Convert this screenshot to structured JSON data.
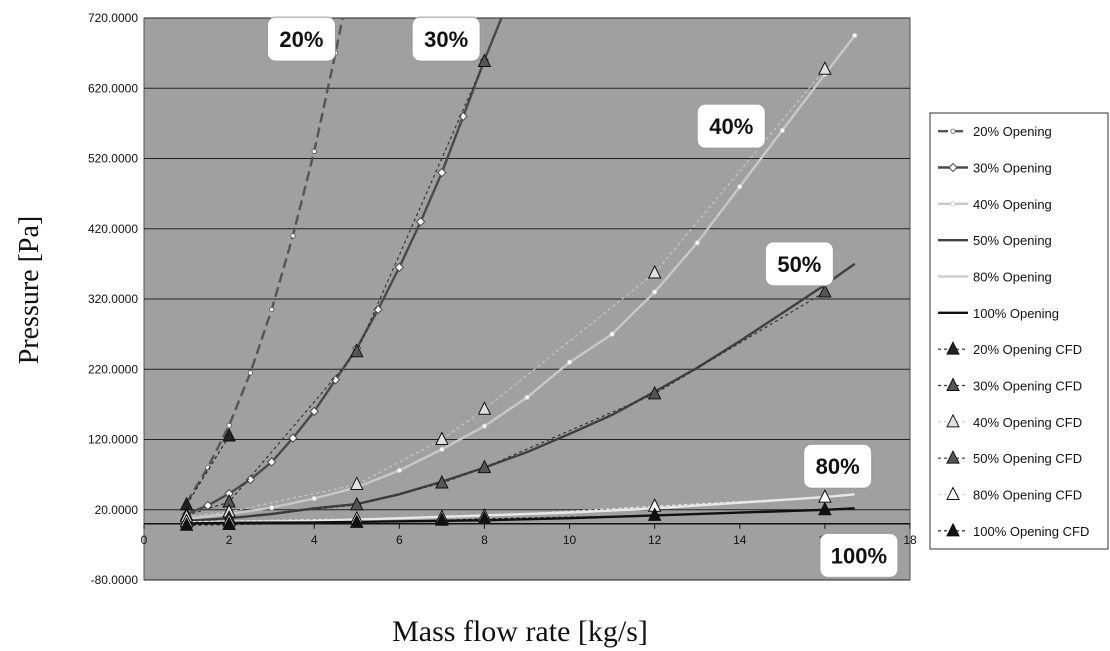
{
  "chart_data": {
    "type": "line",
    "xlabel": "Mass  flow rate [kg/s]",
    "ylabel": "Pressure  [Pa]",
    "xlim": [
      0,
      18
    ],
    "ylim": [
      -80,
      720
    ],
    "x_ticks": [
      0,
      2,
      4,
      6,
      8,
      10,
      12,
      14,
      16,
      18
    ],
    "y_ticks": [
      -80,
      20,
      120,
      220,
      320,
      420,
      520,
      620,
      720
    ],
    "y_tick_labels": [
      "-80.0000",
      "20.0000",
      "120.0000",
      "220.0000",
      "320.0000",
      "420.0000",
      "520.0000",
      "620.0000",
      "720.0000"
    ],
    "grid": "horizontal",
    "background": "#a0a0a0",
    "legend_position": "right",
    "series": [
      {
        "name": "20% Opening",
        "style": "dash",
        "color": "#555555",
        "marker": "dot",
        "x": [
          1,
          1.5,
          2,
          2.5,
          3,
          3.5,
          4,
          4.5,
          4.7
        ],
        "y": [
          30,
          80,
          140,
          215,
          305,
          410,
          530,
          670,
          730
        ]
      },
      {
        "name": "30% Opening",
        "style": "solid",
        "color": "#4a4a4a",
        "marker": "diamond",
        "x": [
          1,
          1.5,
          2,
          2.5,
          3,
          3.5,
          4,
          4.5,
          5,
          5.5,
          6,
          6.5,
          7,
          7.5,
          8,
          8.5
        ],
        "y": [
          14,
          26,
          43,
          63,
          88,
          122,
          160,
          205,
          250,
          305,
          365,
          430,
          500,
          580,
          660,
          735
        ]
      },
      {
        "name": "40% Opening",
        "style": "solid",
        "color": "#c8c8c8",
        "marker": "dot",
        "x": [
          1,
          2,
          3,
          4,
          5,
          6,
          7,
          8,
          9,
          10,
          11,
          12,
          13,
          14,
          15,
          16,
          16.7
        ],
        "y": [
          7,
          14,
          23,
          36,
          52,
          76,
          106,
          139,
          180,
          230,
          270,
          330,
          400,
          480,
          560,
          640,
          695
        ]
      },
      {
        "name": "50% Opening",
        "style": "solid",
        "color": "#404040",
        "marker": "none",
        "x": [
          1,
          2,
          3,
          4,
          5,
          6,
          7,
          8,
          9,
          10,
          11,
          12,
          13,
          14,
          15,
          16,
          16.7
        ],
        "y": [
          4,
          8,
          14,
          22,
          28,
          42,
          60,
          80,
          102,
          128,
          155,
          188,
          222,
          260,
          300,
          340,
          370
        ]
      },
      {
        "name": "80% Opening",
        "style": "solid",
        "color": "#e8e8e8",
        "marker": "none",
        "x": [
          1,
          4,
          8,
          10,
          12,
          14,
          16,
          16.7
        ],
        "y": [
          2,
          4,
          12,
          16,
          22,
          30,
          38,
          42
        ]
      },
      {
        "name": "100% Opening",
        "style": "solid",
        "color": "#111111",
        "marker": "none",
        "x": [
          1,
          4,
          8,
          10,
          12,
          14,
          16,
          16.7
        ],
        "y": [
          1,
          2,
          5,
          8,
          12,
          16,
          20,
          22
        ]
      },
      {
        "name": "20% Opening CFD",
        "style": "dot",
        "color": "#222222",
        "marker": "triangle",
        "marker_fill": "#222222",
        "x": [
          1,
          2
        ],
        "y": [
          27,
          125
        ]
      },
      {
        "name": "30% Opening CFD",
        "style": "dot",
        "color": "#333333",
        "marker": "triangle",
        "marker_fill": "#555555",
        "x": [
          1,
          2,
          5,
          8
        ],
        "y": [
          12,
          31,
          245,
          658
        ]
      },
      {
        "name": "40% Opening CFD",
        "style": "dot",
        "color": "#c8c8c8",
        "marker": "triangle",
        "marker_fill": "#e0e0e0",
        "x": [
          1,
          2,
          5,
          7,
          8,
          12,
          16
        ],
        "y": [
          10,
          17,
          56,
          120,
          163,
          357,
          647
        ]
      },
      {
        "name": "50% Opening CFD",
        "style": "dot",
        "color": "#333333",
        "marker": "triangle",
        "marker_fill": "#555555",
        "x": [
          1,
          2,
          5,
          7,
          8,
          12,
          16
        ],
        "y": [
          3,
          8,
          27,
          58,
          80,
          185,
          330
        ]
      },
      {
        "name": "80% Opening CFD",
        "style": "dot",
        "color": "#e6e6e6",
        "marker": "triangle",
        "marker_fill": "#ffffff",
        "x": [
          1,
          2,
          5,
          7,
          8,
          12,
          16
        ],
        "y": [
          3,
          4,
          7,
          9,
          11,
          25,
          38
        ]
      },
      {
        "name": "100% Opening CFD",
        "style": "dot",
        "color": "#111111",
        "marker": "triangle",
        "marker_fill": "#111111",
        "x": [
          1,
          2,
          5,
          7,
          8,
          12,
          16
        ],
        "y": [
          -2,
          -1,
          2,
          5,
          7,
          12,
          20
        ]
      }
    ],
    "annotations": [
      {
        "text": "20%",
        "x": 3.7,
        "y": 690
      },
      {
        "text": "30%",
        "x": 7.1,
        "y": 690
      },
      {
        "text": "40%",
        "x": 13.8,
        "y": 566
      },
      {
        "text": "50%",
        "x": 15.4,
        "y": 370
      },
      {
        "text": "80%",
        "x": 16.3,
        "y": 82
      },
      {
        "text": "100%",
        "x": 16.8,
        "y": -45
      }
    ]
  }
}
